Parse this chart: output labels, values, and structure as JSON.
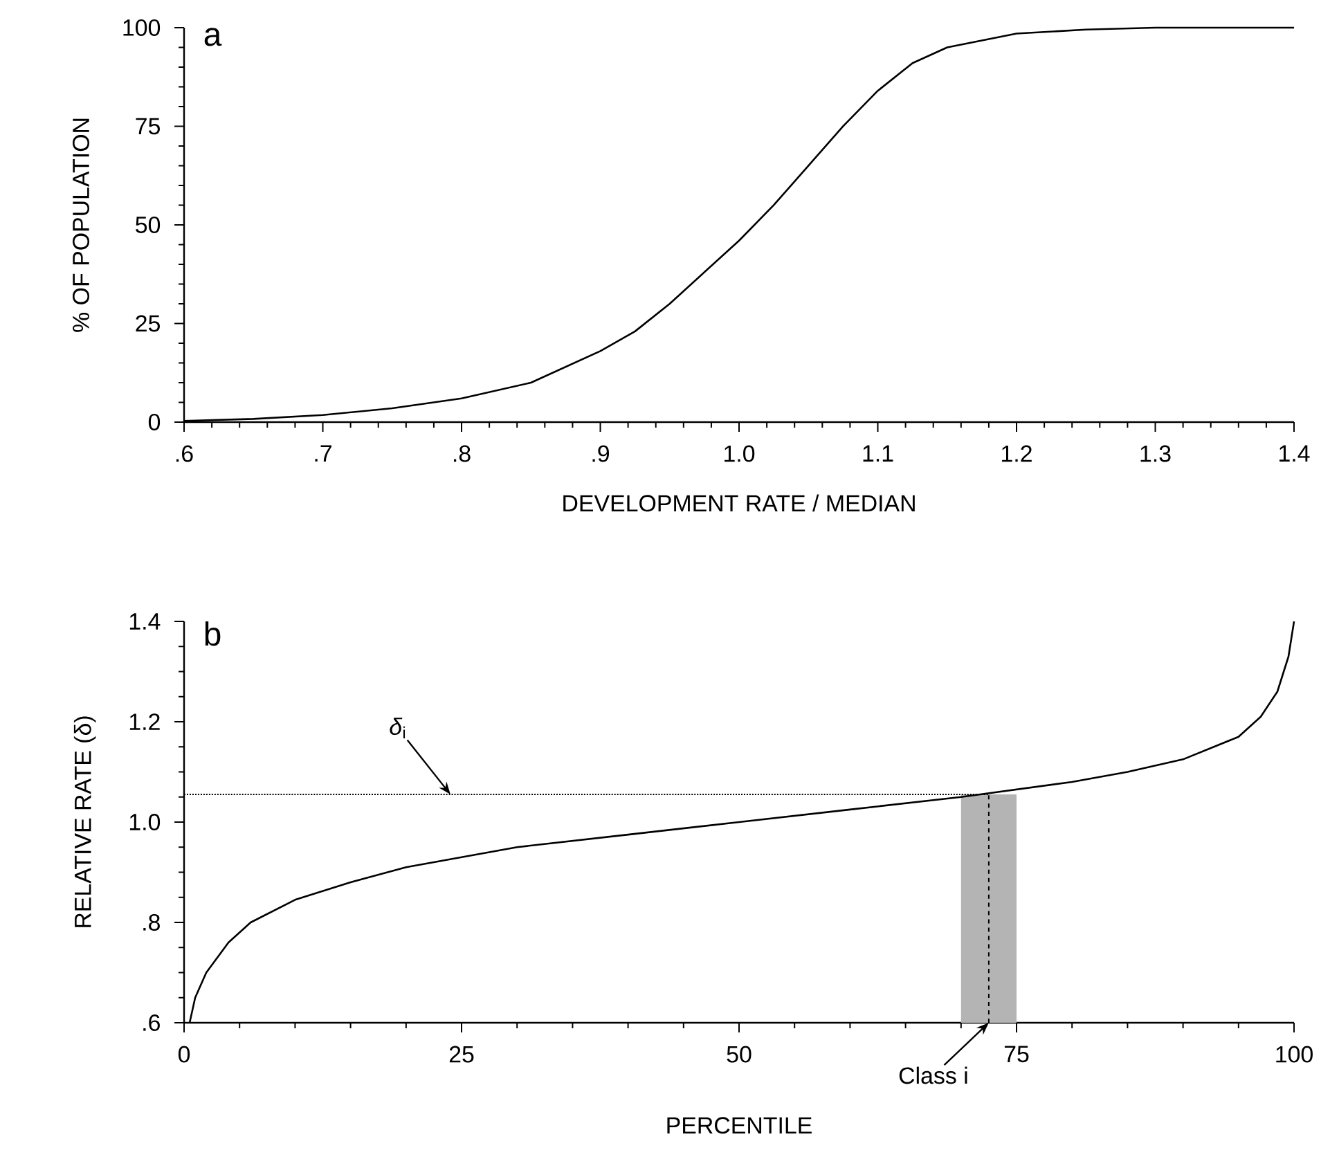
{
  "chart_data": [
    {
      "type": "line",
      "xlabel": "DEVELOPMENT RATE / MEDIAN",
      "ylabel": "% OF POPULATION",
      "series": [
        {
          "color": "#000000",
          "x": [
            0.6,
            0.65,
            0.7,
            0.75,
            0.8,
            0.85,
            0.9,
            0.925,
            0.95,
            0.975,
            1.0,
            1.025,
            1.05,
            1.075,
            1.1,
            1.125,
            1.15,
            1.2,
            1.25,
            1.3,
            1.4
          ],
          "values": [
            0.3,
            0.8,
            1.8,
            3.5,
            6,
            10,
            18,
            23,
            30,
            38,
            46,
            55,
            65,
            75,
            84,
            91,
            95,
            98.5,
            99.5,
            100,
            100
          ]
        }
      ],
      "xlim": [
        0.6,
        1.4
      ],
      "ylim": [
        0,
        100
      ],
      "xticks": [
        {
          "value": 0.6,
          "label": ".6"
        },
        {
          "value": 0.7,
          "label": ".7"
        },
        {
          "value": 0.8,
          "label": ".8"
        },
        {
          "value": 0.9,
          "label": ".9"
        },
        {
          "value": 1.0,
          "label": "1.0"
        },
        {
          "value": 1.1,
          "label": "1.1"
        },
        {
          "value": 1.2,
          "label": "1.2"
        },
        {
          "value": 1.3,
          "label": "1.3"
        },
        {
          "value": 1.4,
          "label": "1.4"
        }
      ],
      "yticks": [
        0,
        25,
        50,
        75,
        100
      ],
      "annotations": [
        "a"
      ],
      "grid": false,
      "marker": "none",
      "line_style": "solid"
    },
    {
      "type": "line",
      "xlabel": "PERCENTILE",
      "ylabel": "RELATIVE RATE (δ)",
      "series": [
        {
          "color": "#000000",
          "x": [
            0.5,
            1,
            2,
            4,
            6,
            10,
            15,
            20,
            25,
            30,
            40,
            50,
            60,
            70,
            75,
            80,
            85,
            90,
            95,
            97,
            98.5,
            99.5,
            100
          ],
          "values": [
            0.6,
            0.65,
            0.7,
            0.76,
            0.8,
            0.845,
            0.88,
            0.91,
            0.93,
            0.95,
            0.975,
            1.0,
            1.025,
            1.05,
            1.065,
            1.08,
            1.1,
            1.125,
            1.17,
            1.21,
            1.26,
            1.33,
            1.4
          ]
        }
      ],
      "xlim": [
        0,
        100
      ],
      "ylim": [
        0.6,
        1.4
      ],
      "xticks": [
        0,
        25,
        50,
        75,
        100
      ],
      "yticks": [
        {
          "value": 0.6,
          "label": ".6"
        },
        {
          "value": 0.8,
          "label": ".8"
        },
        {
          "value": 1.0,
          "label": "1.0"
        },
        {
          "value": 1.2,
          "label": "1.2"
        },
        {
          "value": 1.4,
          "label": "1.4"
        }
      ],
      "ref_lines": [
        {
          "axis": "y",
          "value": 1.055,
          "line_style": "dotted",
          "color": "#000000"
        },
        {
          "axis": "x",
          "value": 72.5,
          "line_style": "dashed",
          "color": "#000000"
        }
      ],
      "bands": [
        {
          "axis": "x",
          "from": 70,
          "to": 75,
          "color": "#b4b4b4"
        }
      ],
      "annotations": [
        "b",
        {
          "text": "*δ*$_{i}$",
          "x": 24,
          "y": 1.055
        },
        {
          "text": "Class i",
          "x": 72.5,
          "y": 0.6
        }
      ],
      "grid": false,
      "marker": "none",
      "line_style": "solid"
    }
  ]
}
